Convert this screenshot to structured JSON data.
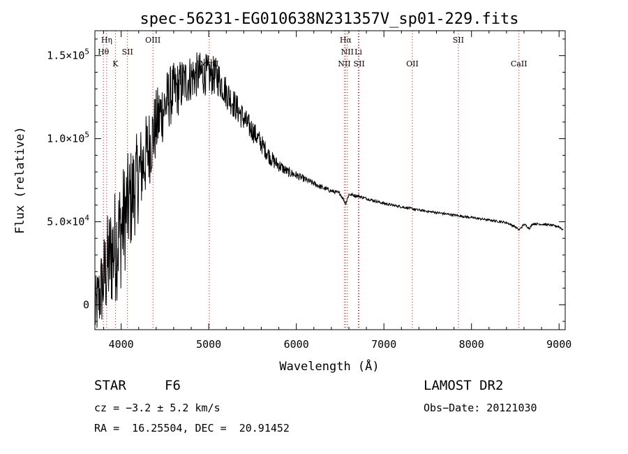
{
  "chart_data": {
    "type": "line",
    "title": "spec-56231-EG010638N231357V_sp01-229.fits",
    "xlabel": "Wavelength (Å)",
    "ylabel": "Flux (relative)",
    "xlim": [
      3700,
      9070
    ],
    "ylim": [
      -15000,
      165000
    ],
    "x_ticks": [
      4000,
      5000,
      6000,
      7000,
      8000,
      9000
    ],
    "x_tick_labels": [
      "4000",
      "5000",
      "6000",
      "7000",
      "8000",
      "9000"
    ],
    "y_ticks": [
      0,
      50000,
      100000,
      150000
    ],
    "y_tick_labels": [
      {
        "mant": "0",
        "exp": ""
      },
      {
        "mant": "5.0×10",
        "exp": "4"
      },
      {
        "mant": "1.0×10",
        "exp": "5"
      },
      {
        "mant": "1.5×10",
        "exp": "5"
      }
    ],
    "series": [
      {
        "x": [
          3700,
          3750,
          3800,
          3850,
          3900,
          3950,
          4000,
          4050,
          4100,
          4150,
          4200,
          4250,
          4300,
          4350,
          4400,
          4450,
          4500,
          4550,
          4600,
          4650,
          4700,
          4750,
          4800,
          4850,
          4900,
          4950,
          5000,
          5050,
          5100,
          5150,
          5200,
          5250,
          5300,
          5350,
          5400,
          5450,
          5500,
          5550,
          5600,
          5650,
          5700,
          5750,
          5800,
          5850,
          5900,
          5950,
          6000,
          6100,
          6200,
          6300,
          6400,
          6500,
          6563,
          6600,
          6700,
          6800,
          6900,
          7000,
          7200,
          7400,
          7600,
          7800,
          8000,
          8200,
          8400,
          8498,
          8542,
          8600,
          8662,
          8700,
          8800,
          8900,
          8950,
          9000,
          9050
        ],
        "y": [
          -5000,
          5000,
          15000,
          25000,
          32000,
          38000,
          45000,
          55000,
          62000,
          70000,
          78000,
          85000,
          92000,
          100000,
          108000,
          115000,
          120000,
          125000,
          128000,
          130000,
          133000,
          135000,
          137000,
          138000,
          139000,
          139000,
          138000,
          138000,
          137000,
          133000,
          128000,
          124000,
          120000,
          116000,
          112000,
          108000,
          105000,
          101000,
          97000,
          93000,
          89000,
          86000,
          84000,
          82000,
          80000,
          79000,
          78000,
          75500,
          73000,
          70500,
          68500,
          67000,
          61000,
          66500,
          65500,
          64000,
          62500,
          61000,
          59000,
          57000,
          55500,
          54000,
          52500,
          51000,
          49500,
          47000,
          45000,
          48500,
          46000,
          48800,
          48500,
          48000,
          47500,
          47000,
          45000
        ],
        "noise": [
          20000,
          22000,
          28000,
          32000,
          35000,
          36000,
          36000,
          34000,
          32000,
          30000,
          28000,
          26000,
          25000,
          23000,
          22000,
          21000,
          20000,
          19000,
          18000,
          17000,
          16000,
          15000,
          14500,
          14000,
          13500,
          13000,
          12500,
          12000,
          11500,
          10500,
          10000,
          9500,
          9000,
          8500,
          8000,
          7500,
          7000,
          6500,
          6000,
          5500,
          5000,
          4500,
          4000,
          3500,
          3000,
          2800,
          2500,
          2000,
          1800,
          1500,
          1300,
          1200,
          1200,
          1100,
          1000,
          900,
          900,
          800,
          800,
          750,
          750,
          700,
          700,
          700,
          700,
          700,
          700,
          700,
          700,
          700,
          700,
          700,
          700,
          700,
          700
        ]
      }
    ],
    "line_markers": [
      {
        "label": "Hη",
        "x": 3835,
        "row": 0
      },
      {
        "label": "Hθ",
        "x": 3797,
        "row": 1
      },
      {
        "label": "K",
        "x": 3934,
        "row": 2
      },
      {
        "label": "SII",
        "x": 4072,
        "row": 1
      },
      {
        "label": "OIII",
        "x": 4363,
        "row": 0
      },
      {
        "label": "MgII",
        "x": 5007,
        "row": 2
      },
      {
        "label": "Hα",
        "x": 6563,
        "row": 0
      },
      {
        "label": "NII",
        "x": 6583,
        "row": 1
      },
      {
        "label": "Li",
        "x": 6708,
        "row": 1
      },
      {
        "label": "NII",
        "x": 6548,
        "row": 2
      },
      {
        "label": "SII",
        "x": 6717,
        "row": 2
      },
      {
        "label": "OII",
        "x": 7325,
        "row": 2
      },
      {
        "label": "SII",
        "x": 7850,
        "row": 0
      },
      {
        "label": "CaII",
        "x": 8542,
        "row": 2
      }
    ]
  },
  "info": {
    "class_label": "STAR",
    "subclass": "F6",
    "survey": "LAMOST DR2",
    "cz": "cz = −3.2 ± 5.2 km/s",
    "obs_date": "Obs−Date: 20121030",
    "radec": "RA =  16.25504, DEC =  20.91452"
  }
}
